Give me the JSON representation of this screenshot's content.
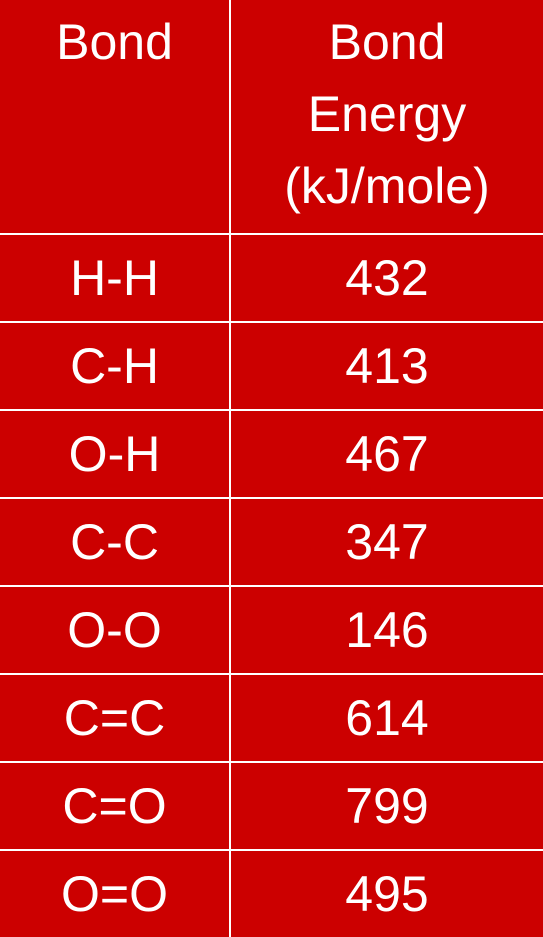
{
  "table": {
    "headers": {
      "bond": "Bond",
      "energy_lines": [
        "Bond",
        "Energy",
        "(kJ/mole)"
      ]
    },
    "rows": [
      {
        "bond": "H-H",
        "energy": "432"
      },
      {
        "bond": "C-H",
        "energy": "413"
      },
      {
        "bond": "O-H",
        "energy": "467"
      },
      {
        "bond": "C-C",
        "energy": "347"
      },
      {
        "bond": "O-O",
        "energy": "146"
      },
      {
        "bond": "C=C",
        "energy": "614"
      },
      {
        "bond": "C=O",
        "energy": "799"
      },
      {
        "bond": "O=O",
        "energy": "495"
      }
    ],
    "colors": {
      "cell_background": "#cc0000",
      "text": "#ffffff",
      "grid_lines": "#ffffff"
    }
  }
}
